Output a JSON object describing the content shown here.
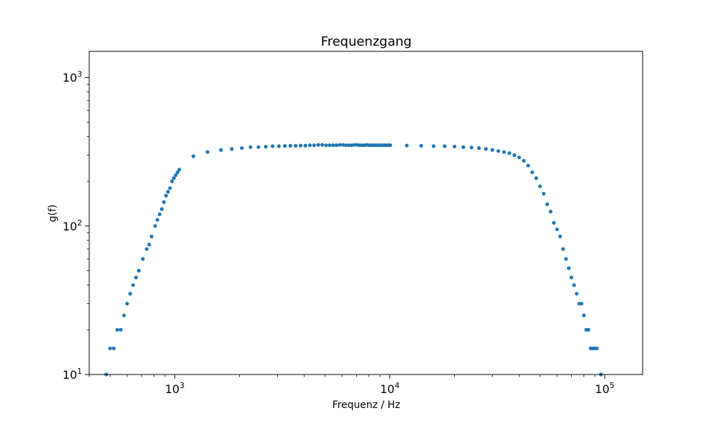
{
  "chart_data": {
    "type": "scatter",
    "title": "Frequenzgang",
    "xlabel": "Frequenz / Hz",
    "ylabel": "g(f)",
    "xscale": "log",
    "yscale": "log",
    "xlim": [
      400,
      150000
    ],
    "ylim": [
      10,
      1500
    ],
    "grid": false,
    "marker_color": "#1f77b4",
    "x_ticks": [
      {
        "value": 1000,
        "base": "10",
        "exp": "3"
      },
      {
        "value": 10000,
        "base": "10",
        "exp": "4"
      },
      {
        "value": 100000,
        "base": "10",
        "exp": "5"
      }
    ],
    "y_ticks": [
      {
        "value": 10,
        "base": "10",
        "exp": "1"
      },
      {
        "value": 100,
        "base": "10",
        "exp": "2"
      },
      {
        "value": 1000,
        "base": "10",
        "exp": "3"
      }
    ],
    "series": [
      {
        "points": [
          [
            480,
            10
          ],
          [
            500,
            15
          ],
          [
            520,
            15
          ],
          [
            540,
            20
          ],
          [
            560,
            20
          ],
          [
            580,
            25
          ],
          [
            600,
            30
          ],
          [
            620,
            35
          ],
          [
            640,
            40
          ],
          [
            660,
            45
          ],
          [
            680,
            50
          ],
          [
            710,
            60
          ],
          [
            740,
            70
          ],
          [
            760,
            75
          ],
          [
            780,
            85
          ],
          [
            810,
            100
          ],
          [
            830,
            110
          ],
          [
            850,
            120
          ],
          [
            870,
            130
          ],
          [
            890,
            145
          ],
          [
            910,
            160
          ],
          [
            930,
            170
          ],
          [
            950,
            180
          ],
          [
            970,
            200
          ],
          [
            990,
            210
          ],
          [
            1010,
            220
          ],
          [
            1030,
            230
          ],
          [
            1050,
            240
          ],
          [
            1220,
            295
          ],
          [
            1420,
            315
          ],
          [
            1640,
            325
          ],
          [
            1840,
            330
          ],
          [
            2050,
            335
          ],
          [
            2250,
            340
          ],
          [
            2450,
            340
          ],
          [
            2650,
            342
          ],
          [
            2850,
            345
          ],
          [
            3050,
            345
          ],
          [
            3250,
            346
          ],
          [
            3450,
            347
          ],
          [
            3650,
            347
          ],
          [
            3850,
            348
          ],
          [
            4050,
            348
          ],
          [
            4250,
            350
          ],
          [
            4450,
            350
          ],
          [
            4650,
            352
          ],
          [
            4850,
            352
          ],
          [
            5050,
            350
          ],
          [
            5250,
            350
          ],
          [
            5450,
            350
          ],
          [
            5650,
            350
          ],
          [
            5850,
            352
          ],
          [
            6050,
            352
          ],
          [
            6250,
            350
          ],
          [
            6450,
            350
          ],
          [
            6650,
            350
          ],
          [
            6850,
            352
          ],
          [
            7050,
            352
          ],
          [
            7250,
            350
          ],
          [
            7450,
            350
          ],
          [
            7650,
            350
          ],
          [
            7850,
            352
          ],
          [
            8050,
            350
          ],
          [
            8250,
            350
          ],
          [
            8450,
            350
          ],
          [
            8650,
            350
          ],
          [
            8850,
            350
          ],
          [
            9050,
            350
          ],
          [
            9250,
            350
          ],
          [
            9450,
            350
          ],
          [
            9650,
            350
          ],
          [
            9850,
            350
          ],
          [
            10050,
            350
          ],
          [
            12000,
            348
          ],
          [
            14000,
            347
          ],
          [
            16000,
            345
          ],
          [
            18000,
            345
          ],
          [
            20000,
            343
          ],
          [
            22000,
            340
          ],
          [
            24000,
            338
          ],
          [
            26000,
            335
          ],
          [
            28000,
            330
          ],
          [
            30000,
            325
          ],
          [
            32000,
            320
          ],
          [
            34000,
            315
          ],
          [
            36000,
            310
          ],
          [
            38000,
            300
          ],
          [
            40000,
            290
          ],
          [
            42000,
            275
          ],
          [
            44000,
            255
          ],
          [
            46000,
            230
          ],
          [
            48000,
            210
          ],
          [
            50000,
            185
          ],
          [
            52000,
            165
          ],
          [
            54000,
            140
          ],
          [
            56000,
            125
          ],
          [
            58000,
            105
          ],
          [
            60000,
            95
          ],
          [
            62000,
            85
          ],
          [
            64000,
            70
          ],
          [
            66000,
            60
          ],
          [
            68000,
            52
          ],
          [
            70000,
            45
          ],
          [
            72000,
            40
          ],
          [
            74000,
            35
          ],
          [
            76000,
            30
          ],
          [
            78000,
            30
          ],
          [
            80000,
            25
          ],
          [
            82000,
            20
          ],
          [
            84000,
            20
          ],
          [
            86000,
            15
          ],
          [
            88000,
            15
          ],
          [
            90000,
            15
          ],
          [
            92000,
            15
          ],
          [
            96000,
            10
          ]
        ]
      }
    ]
  }
}
